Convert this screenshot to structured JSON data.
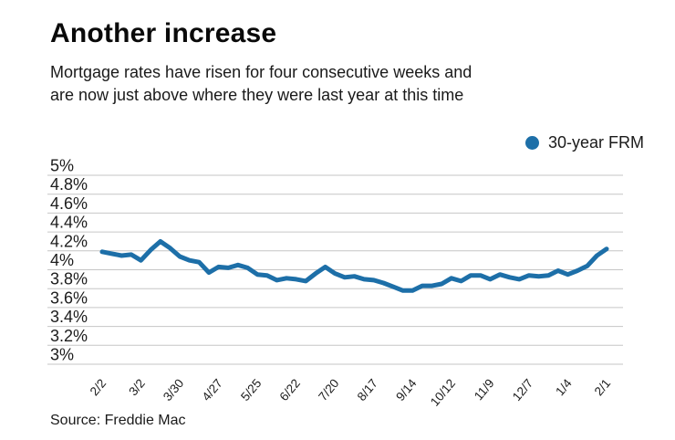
{
  "chart_data": {
    "type": "line",
    "title": "Another increase",
    "subtitle": "Mortgage rates have risen for four consecutive weeks and are now just above where they were last year at this time",
    "subtitle_lines": [
      "Mortgage rates have risen for four consecutive weeks and",
      "are now just above where they were last year at this time"
    ],
    "legend": {
      "label": "30-year FRM",
      "position": "top-right"
    },
    "source": "Source: Freddie Mac",
    "unit": "%",
    "ylim": [
      3,
      5
    ],
    "grid": "horizontal-only",
    "colors": {
      "line": "#1d6fa8",
      "grid": "#c6c6c6",
      "tick_text": "#1c1c1c"
    },
    "y_ticks": [
      {
        "v": 5.0,
        "label": "5%"
      },
      {
        "v": 4.8,
        "label": "4.8%"
      },
      {
        "v": 4.6,
        "label": "4.6%"
      },
      {
        "v": 4.4,
        "label": "4.4%"
      },
      {
        "v": 4.2,
        "label": "4.2%"
      },
      {
        "v": 4.0,
        "label": "4%"
      },
      {
        "v": 3.8,
        "label": "3.8%"
      },
      {
        "v": 3.6,
        "label": "3.6%"
      },
      {
        "v": 3.4,
        "label": "3.4%"
      },
      {
        "v": 3.2,
        "label": "3.2%"
      },
      {
        "v": 3.0,
        "label": "3%"
      }
    ],
    "x": [
      "2/2",
      "2/9",
      "2/16",
      "2/23",
      "3/2",
      "3/9",
      "3/16",
      "3/23",
      "3/30",
      "4/6",
      "4/13",
      "4/20",
      "4/27",
      "5/4",
      "5/11",
      "5/18",
      "5/25",
      "6/1",
      "6/8",
      "6/15",
      "6/22",
      "6/29",
      "7/6",
      "7/13",
      "7/20",
      "7/27",
      "8/3",
      "8/10",
      "8/17",
      "8/24",
      "8/31",
      "9/7",
      "9/14",
      "9/21",
      "9/28",
      "10/5",
      "10/12",
      "10/19",
      "10/26",
      "11/2",
      "11/9",
      "11/16",
      "11/23",
      "11/30",
      "12/7",
      "12/14",
      "12/21",
      "12/28",
      "1/4",
      "1/11",
      "1/18",
      "1/25",
      "2/1"
    ],
    "x_tick_indices": [
      0,
      4,
      8,
      12,
      16,
      20,
      24,
      28,
      32,
      36,
      40,
      44,
      48,
      52
    ],
    "x_tick_labels": [
      "2/2",
      "3/2",
      "3/30",
      "4/27",
      "5/25",
      "6/22",
      "7/20",
      "8/17",
      "9/14",
      "10/12",
      "11/9",
      "12/7",
      "1/4",
      "2/1"
    ],
    "series": [
      {
        "name": "30-year FRM",
        "values": [
          4.19,
          4.17,
          4.15,
          4.16,
          4.1,
          4.21,
          4.3,
          4.23,
          4.14,
          4.1,
          4.08,
          3.97,
          4.03,
          4.02,
          4.05,
          4.02,
          3.95,
          3.94,
          3.89,
          3.91,
          3.9,
          3.88,
          3.96,
          4.03,
          3.96,
          3.92,
          3.93,
          3.9,
          3.89,
          3.86,
          3.82,
          3.78,
          3.78,
          3.83,
          3.83,
          3.85,
          3.91,
          3.88,
          3.94,
          3.94,
          3.9,
          3.95,
          3.92,
          3.9,
          3.94,
          3.93,
          3.94,
          3.99,
          3.95,
          3.99,
          4.04,
          4.15,
          4.22
        ]
      }
    ]
  }
}
